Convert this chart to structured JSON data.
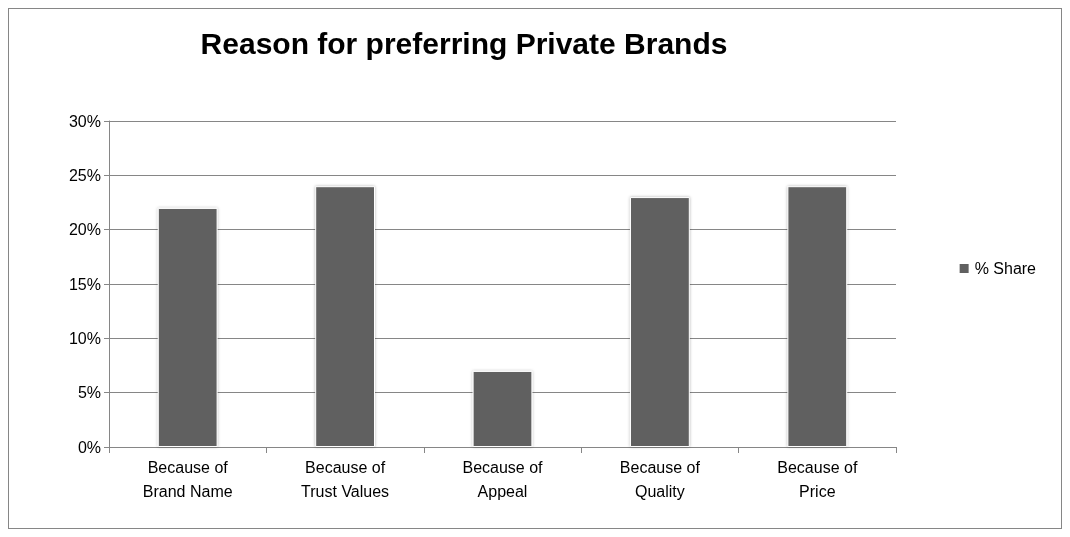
{
  "chart_data": {
    "type": "bar",
    "title": "Reason for preferring Private Brands",
    "categories": [
      "Because of\nBrand Name",
      "Because of\nTrust Values",
      "Because of\nAppeal",
      "Because of\nQuality",
      "Because of\nPrice"
    ],
    "series": [
      {
        "name": "% Share",
        "color": "#606060",
        "values": [
          22,
          24,
          7,
          23,
          24
        ]
      }
    ],
    "ylim": [
      0,
      30
    ],
    "yticks": [
      {
        "value": 0,
        "label": "0%"
      },
      {
        "value": 5,
        "label": "5%"
      },
      {
        "value": 10,
        "label": "10%"
      },
      {
        "value": 15,
        "label": "15%"
      },
      {
        "value": 20,
        "label": "20%"
      },
      {
        "value": 25,
        "label": "25%"
      },
      {
        "value": 30,
        "label": "30%"
      }
    ],
    "grid": "y",
    "legend": "right"
  }
}
